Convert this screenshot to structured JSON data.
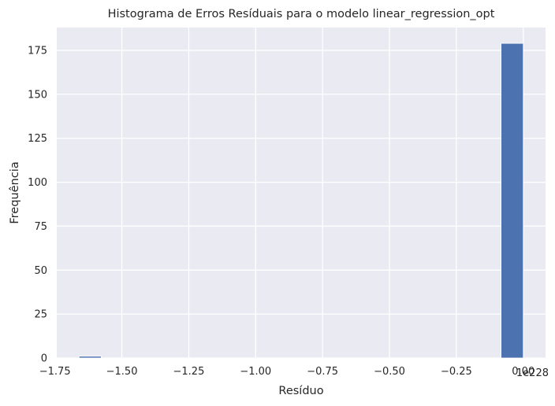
{
  "chart_data": {
    "type": "bar",
    "title": "Histograma de Erros Resíduais para o modelo linear_regression_opt",
    "xlabel": "Resíduo",
    "ylabel": "Frequência",
    "x_offset_label": "1e228",
    "xlim": [
      -1.7432,
      0.0832
    ],
    "ylim": [
      0,
      188
    ],
    "x_ticks": [
      -1.75,
      -1.5,
      -1.25,
      -1.0,
      -0.75,
      -0.5,
      -0.25,
      0.0
    ],
    "x_tick_labels": [
      "−1.75",
      "−1.50",
      "−1.25",
      "−1.00",
      "−0.75",
      "−0.50",
      "−0.25",
      "0.00"
    ],
    "y_ticks": [
      0,
      25,
      50,
      75,
      100,
      125,
      150,
      175
    ],
    "y_tick_labels": [
      "0",
      "25",
      "50",
      "75",
      "100",
      "125",
      "150",
      "175"
    ],
    "grid": true,
    "bins": {
      "start": -1.66,
      "width": 0.083,
      "counts": [
        1,
        0,
        0,
        0,
        0,
        0,
        0,
        0,
        0,
        0,
        0,
        0,
        0,
        0,
        0,
        0,
        0,
        0,
        0,
        179
      ]
    },
    "colors": {
      "bar": "#4c72b0",
      "background": "#eaeaf2",
      "grid": "#ffffff"
    }
  }
}
